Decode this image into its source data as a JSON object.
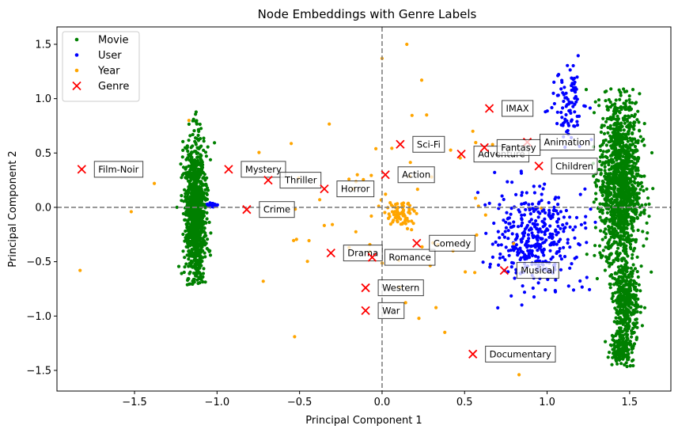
{
  "chart_data": {
    "type": "scatter",
    "title": "Node Embeddings with Genre Labels",
    "xlabel": "Principal Component 1",
    "ylabel": "Principal Component 2",
    "xlim": [
      -1.97,
      1.75
    ],
    "ylim": [
      -1.69,
      1.66
    ],
    "xticks": [
      -1.5,
      -1.0,
      -0.5,
      0.0,
      0.5,
      1.0,
      1.5
    ],
    "yticks": [
      -1.5,
      -1.0,
      -0.5,
      0.0,
      0.5,
      1.0,
      1.5
    ],
    "xtick_labels": [
      "−1.5",
      "−1.0",
      "−0.5",
      "0.0",
      "0.5",
      "1.0",
      "1.5"
    ],
    "ytick_labels": [
      "−1.5",
      "−1.0",
      "−0.5",
      "0.0",
      "0.5",
      "1.0",
      "1.5"
    ],
    "grid": false,
    "reference_lines": [
      {
        "orientation": "vertical",
        "value": 0.0,
        "style": "dashed",
        "color": "#808080"
      },
      {
        "orientation": "horizontal",
        "value": 0.0,
        "style": "dashed",
        "color": "#808080"
      }
    ],
    "legend": {
      "position": "top-left",
      "entries": [
        {
          "name": "Movie",
          "marker": "dot",
          "color": "#008000"
        },
        {
          "name": "User",
          "marker": "dot",
          "color": "#0000ff"
        },
        {
          "name": "Year",
          "marker": "dot",
          "color": "#ffa500"
        },
        {
          "name": "Genre",
          "marker": "x",
          "color": "#ff0000"
        }
      ]
    },
    "clusters": {
      "movie": [
        {
          "cx": -1.13,
          "cy": -0.05,
          "sx": 0.03,
          "sy": 0.32,
          "ymin": -0.72,
          "ymax": 0.9,
          "n": 1100
        },
        {
          "cx": 1.44,
          "cy": 0.2,
          "sx": 0.06,
          "sy": 0.42,
          "ymin": -0.75,
          "ymax": 1.1,
          "n": 1300
        },
        {
          "cx": 1.48,
          "cy": -0.85,
          "sx": 0.04,
          "sy": 0.2,
          "ymin": -1.47,
          "ymax": -0.55,
          "n": 350
        },
        {
          "cx": 1.45,
          "cy": -1.3,
          "sx": 0.035,
          "sy": 0.07,
          "ymin": -1.47,
          "ymax": -1.1,
          "n": 150
        }
      ],
      "user": [
        {
          "cx": 0.93,
          "cy": -0.3,
          "sx": 0.12,
          "sy": 0.22,
          "ymin": -0.95,
          "ymax": 0.35,
          "n": 380
        },
        {
          "cx": 1.13,
          "cy": 0.95,
          "sx": 0.05,
          "sy": 0.18,
          "ymin": 0.55,
          "ymax": 1.4,
          "n": 90
        },
        {
          "cx": -1.03,
          "cy": 0.02,
          "sx": 0.012,
          "sy": 0.008,
          "ymin": -0.02,
          "ymax": 0.05,
          "n": 40
        }
      ],
      "year": [
        {
          "cx": 0.1,
          "cy": -0.07,
          "sx": 0.05,
          "sy": 0.06,
          "ymin": -0.3,
          "ymax": 0.1,
          "n": 70
        },
        {
          "cx": 0.1,
          "cy": 0.0,
          "sx": 0.35,
          "sy": 0.45,
          "ymin": -1.2,
          "ymax": 1.5,
          "n": 55
        }
      ]
    },
    "year_outliers": [
      {
        "x": 0.15,
        "y": 1.5
      },
      {
        "x": 0.24,
        "y": 1.17
      },
      {
        "x": 0.0,
        "y": 1.37
      },
      {
        "x": -1.17,
        "y": 0.8
      },
      {
        "x": -0.72,
        "y": -0.68
      },
      {
        "x": -1.83,
        "y": -0.58
      },
      {
        "x": -0.53,
        "y": -1.19
      },
      {
        "x": 0.38,
        "y": -1.15
      },
      {
        "x": 0.83,
        "y": -1.54
      },
      {
        "x": -1.38,
        "y": 0.22
      },
      {
        "x": -1.52,
        "y": -0.04
      },
      {
        "x": 0.27,
        "y": 0.85
      },
      {
        "x": 0.55,
        "y": 0.7
      },
      {
        "x": -0.15,
        "y": 0.3
      },
      {
        "x": -0.2,
        "y": -0.37
      }
    ],
    "genres": [
      {
        "label": "Film-Noir",
        "x": -1.82,
        "y": 0.35
      },
      {
        "label": "Mystery",
        "x": -0.93,
        "y": 0.35
      },
      {
        "label": "Thriller",
        "x": -0.69,
        "y": 0.25
      },
      {
        "label": "Horror",
        "x": -0.35,
        "y": 0.17
      },
      {
        "label": "Crime",
        "x": -0.82,
        "y": -0.02
      },
      {
        "label": "Action",
        "x": 0.02,
        "y": 0.3
      },
      {
        "label": "Sci-Fi",
        "x": 0.11,
        "y": 0.58
      },
      {
        "label": "Adventure",
        "x": 0.48,
        "y": 0.49
      },
      {
        "label": "IMAX",
        "x": 0.65,
        "y": 0.91
      },
      {
        "label": "Animation",
        "x": 0.88,
        "y": 0.6
      },
      {
        "label": "Fantasy",
        "x": 0.62,
        "y": 0.55
      },
      {
        "label": "Children",
        "x": 0.95,
        "y": 0.38
      },
      {
        "label": "Drama",
        "x": -0.31,
        "y": -0.42
      },
      {
        "label": "Romance",
        "x": -0.06,
        "y": -0.46
      },
      {
        "label": "Comedy",
        "x": 0.21,
        "y": -0.33
      },
      {
        "label": "Musical",
        "x": 0.74,
        "y": -0.58
      },
      {
        "label": "Western",
        "x": -0.1,
        "y": -0.74
      },
      {
        "label": "War",
        "x": -0.1,
        "y": -0.95
      },
      {
        "label": "Documentary",
        "x": 0.55,
        "y": -1.35
      }
    ]
  }
}
